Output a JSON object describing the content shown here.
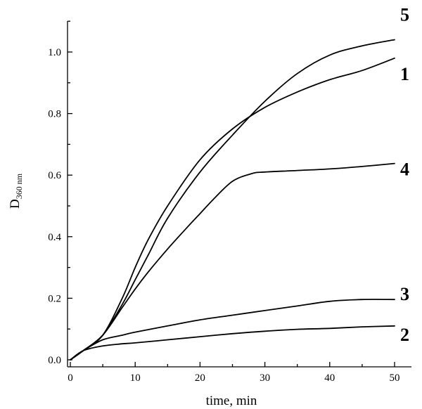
{
  "chart_data": {
    "type": "line",
    "xlabel": "time, min",
    "ylabel_main": "D",
    "ylabel_sub": "360 nm",
    "xlim": [
      0,
      52
    ],
    "ylim": [
      -0.02,
      1.1
    ],
    "x_ticks": [
      "0",
      "10",
      "20",
      "30",
      "40",
      "50"
    ],
    "y_ticks": [
      "0.0",
      "0.2",
      "0.4",
      "0.6",
      "0.8",
      "1.0"
    ],
    "grid": false,
    "series": [
      {
        "name": "1",
        "x": [
          0,
          2,
          5,
          8,
          10,
          12,
          15,
          20,
          25,
          30,
          35,
          40,
          45,
          50
        ],
        "y": [
          0,
          0.03,
          0.08,
          0.2,
          0.3,
          0.39,
          0.5,
          0.65,
          0.75,
          0.82,
          0.87,
          0.91,
          0.94,
          0.98
        ]
      },
      {
        "name": "2",
        "x": [
          0,
          2,
          5,
          8,
          10,
          15,
          20,
          25,
          30,
          35,
          40,
          45,
          50
        ],
        "y": [
          0,
          0.03,
          0.045,
          0.052,
          0.055,
          0.065,
          0.075,
          0.085,
          0.093,
          0.099,
          0.102,
          0.107,
          0.11
        ]
      },
      {
        "name": "3",
        "x": [
          0,
          2,
          5,
          8,
          10,
          15,
          20,
          25,
          30,
          35,
          40,
          45,
          50
        ],
        "y": [
          0,
          0.03,
          0.065,
          0.08,
          0.09,
          0.11,
          0.13,
          0.145,
          0.16,
          0.175,
          0.19,
          0.196,
          0.196
        ]
      },
      {
        "name": "4",
        "x": [
          0,
          2,
          5,
          8,
          10,
          12,
          15,
          18,
          20,
          22,
          25,
          28,
          30,
          35,
          40,
          45,
          50
        ],
        "y": [
          0,
          0.03,
          0.08,
          0.17,
          0.23,
          0.285,
          0.36,
          0.43,
          0.475,
          0.52,
          0.58,
          0.605,
          0.61,
          0.615,
          0.62,
          0.628,
          0.638
        ]
      },
      {
        "name": "5",
        "x": [
          0,
          2,
          5,
          8,
          10,
          12,
          15,
          20,
          25,
          30,
          35,
          40,
          45,
          50
        ],
        "y": [
          0,
          0.03,
          0.08,
          0.18,
          0.26,
          0.34,
          0.46,
          0.61,
          0.73,
          0.84,
          0.93,
          0.99,
          1.02,
          1.04
        ]
      }
    ],
    "series_labels": [
      {
        "text": "5",
        "series": "5"
      },
      {
        "text": "1",
        "series": "1"
      },
      {
        "text": "4",
        "series": "4"
      },
      {
        "text": "3",
        "series": "3"
      },
      {
        "text": "2",
        "series": "2"
      }
    ]
  }
}
